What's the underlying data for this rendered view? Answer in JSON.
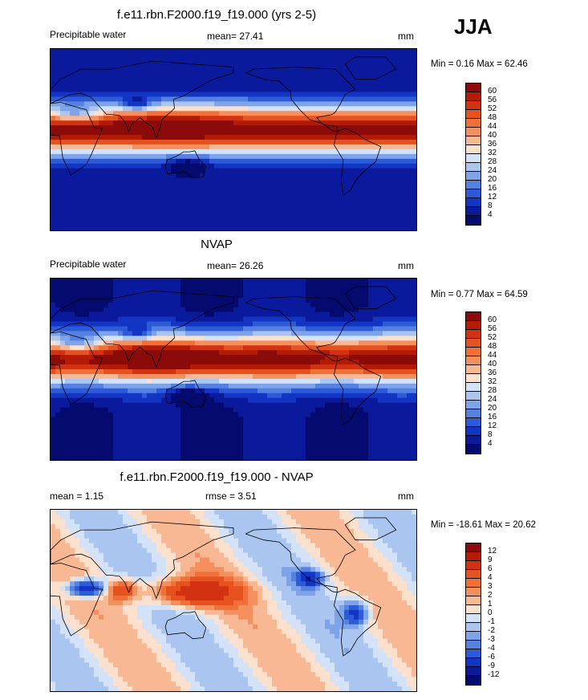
{
  "season": "JJA",
  "panels": [
    {
      "title": "f.e11.rbn.F2000.f19_f19.000 (yrs 2-5)",
      "left_label": "Precipitable water",
      "center_label": "mean=  27.41",
      "units": "mm",
      "minmax": "Min =   0.16 Max =  62.46",
      "type": "absolute"
    },
    {
      "title": "NVAP",
      "left_label": "Precipitable water",
      "center_label": "mean=  26.26",
      "units": "mm",
      "minmax": "Min =   0.77 Max =  64.59",
      "type": "absolute"
    },
    {
      "title": "f.e11.rbn.F2000.f19_f19.000 - NVAP",
      "left_label": "mean =   1.15",
      "center_label": "rmse =    3.51",
      "units": "mm",
      "minmax": "Min = -18.61 Max =  20.62",
      "type": "difference"
    }
  ],
  "colorbars": {
    "absolute": {
      "labels": [
        "60",
        "56",
        "52",
        "48",
        "44",
        "40",
        "36",
        "32",
        "28",
        "24",
        "20",
        "16",
        "12",
        "8",
        "4"
      ],
      "colors": [
        "#8b0a0a",
        "#b31b06",
        "#d33212",
        "#e6521f",
        "#f0703a",
        "#f48f5e",
        "#f8b894",
        "#fbe0cd",
        "#d3e2f7",
        "#a9c5f0",
        "#7ea3e8",
        "#5581e0",
        "#2d5bd8",
        "#1235c4",
        "#0b1a9c",
        "#050a6e"
      ]
    },
    "difference": {
      "labels": [
        "12",
        "9",
        "6",
        "4",
        "3",
        "2",
        "1",
        "0",
        "-1",
        "-2",
        "-3",
        "-4",
        "-6",
        "-9",
        "-12"
      ],
      "colors": [
        "#8b0a0a",
        "#b31b06",
        "#d33212",
        "#e6521f",
        "#f0703a",
        "#f48f5e",
        "#f8b894",
        "#fbe0cd",
        "#d3e2f7",
        "#a9c5f0",
        "#7ea3e8",
        "#5581e0",
        "#2d5bd8",
        "#1235c4",
        "#0b1a9c",
        "#050a6e"
      ]
    }
  }
}
